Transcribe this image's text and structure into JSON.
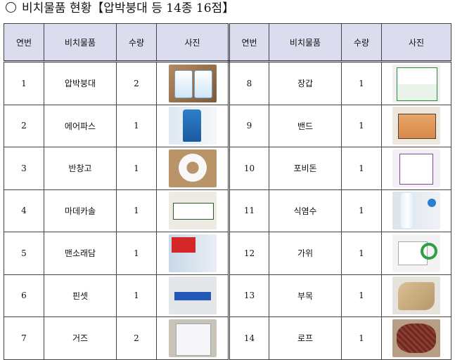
{
  "title": "비치물품 현황【압박붕대 등 14종 16점】",
  "headers": {
    "no": "연번",
    "item": "비치물품",
    "qty": "수량",
    "photo": "사진"
  },
  "rows": [
    {
      "left": {
        "no": "1",
        "item": "압박붕대",
        "qty": "2",
        "photo_icon": "compression-bandage-photo"
      },
      "right": {
        "no": "8",
        "item": "장갑",
        "qty": "1",
        "photo_icon": "gloves-photo"
      }
    },
    {
      "left": {
        "no": "2",
        "item": "에어파스",
        "qty": "1",
        "photo_icon": "air-pas-spray-photo"
      },
      "right": {
        "no": "9",
        "item": "밴드",
        "qty": "1",
        "photo_icon": "band-photo"
      }
    },
    {
      "left": {
        "no": "3",
        "item": "반창고",
        "qty": "1",
        "photo_icon": "adhesive-tape-photo"
      },
      "right": {
        "no": "10",
        "item": "포비돈",
        "qty": "1",
        "photo_icon": "povidone-photo"
      }
    },
    {
      "left": {
        "no": "4",
        "item": "마데카솔",
        "qty": "1",
        "photo_icon": "madecasol-photo"
      },
      "right": {
        "no": "11",
        "item": "식염수",
        "qty": "1",
        "photo_icon": "saline-photo"
      }
    },
    {
      "left": {
        "no": "5",
        "item": "맨소래담",
        "qty": "1",
        "photo_icon": "mentholatum-photo"
      },
      "right": {
        "no": "12",
        "item": "가위",
        "qty": "1",
        "photo_icon": "scissors-photo"
      }
    },
    {
      "left": {
        "no": "6",
        "item": "핀셋",
        "qty": "1",
        "photo_icon": "tweezers-photo"
      },
      "right": {
        "no": "13",
        "item": "부목",
        "qty": "1",
        "photo_icon": "splint-photo"
      }
    },
    {
      "left": {
        "no": "7",
        "item": "거즈",
        "qty": "2",
        "photo_icon": "gauze-photo"
      },
      "right": {
        "no": "14",
        "item": "로프",
        "qty": "1",
        "photo_icon": "rope-photo"
      }
    }
  ],
  "colors": {
    "header_bg": "#dcdcef",
    "border": "#444444"
  }
}
